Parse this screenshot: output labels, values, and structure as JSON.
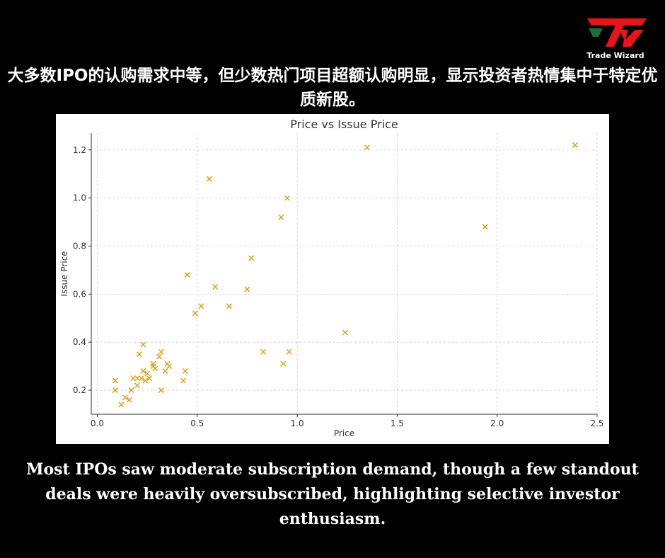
{
  "brand": {
    "name": "Trade Wizard",
    "logo_mark": "TW",
    "accent": "#e8141c",
    "accent_dark": "#1f6b3a"
  },
  "headline_cn": "大多数IPO的认购需求中等，但少数热门项目超额认购明显，显示投资者热情集中于特定优质新股。",
  "caption_en": "Most IPOs saw moderate subscription demand, though a few standout deals were heavily oversubscribed, highlighting selective investor enthusiasm.",
  "chart_data": {
    "type": "scatter",
    "title": "Price vs Issue Price",
    "xlabel": "Price",
    "ylabel": "Issue Price",
    "xlim": [
      -0.03,
      2.5
    ],
    "ylim": [
      0.1,
      1.27
    ],
    "xticks": [
      "0.0",
      "0.5",
      "1.0",
      "1.5",
      "2.0",
      "2.5"
    ],
    "yticks": [
      "0.2",
      "0.4",
      "0.6",
      "0.8",
      "1.0",
      "1.2"
    ],
    "grid": true,
    "marker": "x",
    "color": "#e0a21a",
    "points": [
      [
        0.09,
        0.24
      ],
      [
        0.09,
        0.2
      ],
      [
        0.12,
        0.14
      ],
      [
        0.14,
        0.17
      ],
      [
        0.16,
        0.16
      ],
      [
        0.17,
        0.2
      ],
      [
        0.18,
        0.25
      ],
      [
        0.2,
        0.25
      ],
      [
        0.2,
        0.22
      ],
      [
        0.21,
        0.35
      ],
      [
        0.22,
        0.25
      ],
      [
        0.23,
        0.28
      ],
      [
        0.23,
        0.39
      ],
      [
        0.24,
        0.24
      ],
      [
        0.25,
        0.27
      ],
      [
        0.26,
        0.25
      ],
      [
        0.28,
        0.31
      ],
      [
        0.28,
        0.3
      ],
      [
        0.29,
        0.29
      ],
      [
        0.31,
        0.34
      ],
      [
        0.32,
        0.36
      ],
      [
        0.32,
        0.2
      ],
      [
        0.34,
        0.28
      ],
      [
        0.35,
        0.31
      ],
      [
        0.36,
        0.3
      ],
      [
        0.43,
        0.24
      ],
      [
        0.44,
        0.28
      ],
      [
        0.45,
        0.68
      ],
      [
        0.49,
        0.52
      ],
      [
        0.52,
        0.55
      ],
      [
        0.56,
        1.08
      ],
      [
        0.59,
        0.63
      ],
      [
        0.66,
        0.55
      ],
      [
        0.75,
        0.62
      ],
      [
        0.77,
        0.75
      ],
      [
        0.83,
        0.36
      ],
      [
        0.92,
        0.92
      ],
      [
        0.93,
        0.31
      ],
      [
        0.95,
        1.0
      ],
      [
        0.96,
        0.36
      ],
      [
        1.24,
        0.44
      ],
      [
        1.35,
        1.21
      ],
      [
        1.94,
        0.88
      ],
      [
        2.39,
        1.22
      ]
    ]
  }
}
